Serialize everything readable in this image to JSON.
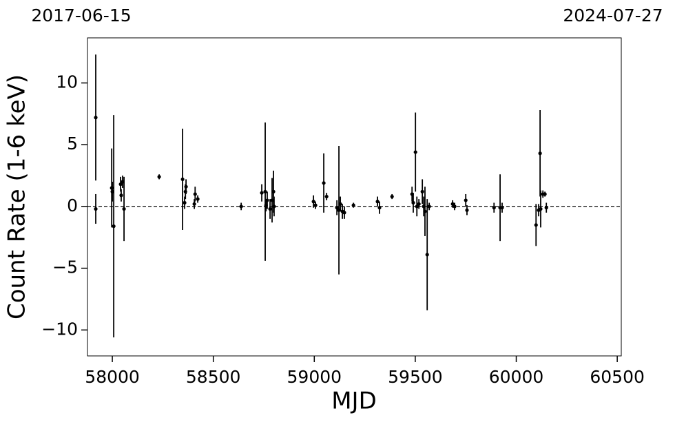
{
  "chart_data": {
    "type": "errorbar",
    "date_start": "2017-06-15",
    "date_end": "2024-07-27",
    "x_label": "MJD",
    "y_label": "Count Rate (1-6 keV)",
    "xlim": [
      57877,
      60520
    ],
    "ylim": [
      -12.1,
      13.65
    ],
    "xticks": [
      58000,
      58500,
      59000,
      59500,
      60000,
      60500
    ],
    "yticks": [
      {
        "value": -10,
        "label": "−10"
      },
      {
        "value": -5,
        "label": "−5"
      },
      0,
      5,
      10
    ],
    "reference_line": 0,
    "color": "#000000",
    "x": [
      57918,
      57918,
      57997,
      58000,
      58007,
      58041,
      58044,
      58051,
      58058,
      58232,
      58348,
      58358,
      58362,
      58365,
      58406,
      58410,
      58423,
      58638,
      58740,
      58757,
      58761,
      58767,
      58781,
      58791,
      58798,
      58801,
      58996,
      59006,
      59047,
      59061,
      59112,
      59122,
      59129,
      59139,
      59149,
      59194,
      59313,
      59323,
      59385,
      59484,
      59490,
      59501,
      59508,
      59518,
      59535,
      59542,
      59548,
      59559,
      59569,
      59685,
      59695,
      59750,
      59756,
      59890,
      59920,
      59930,
      60098,
      60111,
      60118,
      60121,
      60132,
      60142,
      60149
    ],
    "y": [
      7.2,
      -0.2,
      1.5,
      1.2,
      -1.6,
      1.8,
      0.9,
      2.0,
      -0.2,
      2.4,
      2.2,
      0.3,
      1.2,
      1.6,
      0.2,
      1.0,
      0.6,
      0.0,
      1.1,
      1.2,
      0.1,
      0.5,
      -0.2,
      0.5,
      1.2,
      0.0,
      0.4,
      0.1,
      1.9,
      0.8,
      -0.1,
      -0.3,
      0.2,
      -0.4,
      -0.5,
      0.1,
      0.4,
      -0.1,
      0.8,
      1.0,
      0.3,
      4.4,
      0.0,
      0.2,
      1.2,
      0.0,
      -0.4,
      -3.9,
      0.0,
      0.2,
      0.0,
      0.5,
      -0.3,
      -0.1,
      -0.1,
      -0.1,
      -1.5,
      -0.3,
      4.3,
      -0.2,
      1.0,
      1.0,
      -0.1
    ],
    "err": [
      5.1,
      1.2,
      3.2,
      0.8,
      9.0,
      0.6,
      0.5,
      0.5,
      2.6,
      0.2,
      4.1,
      0.5,
      0.6,
      0.6,
      0.4,
      0.6,
      0.3,
      0.3,
      0.7,
      5.6,
      0.5,
      0.7,
      0.8,
      1.8,
      1.7,
      0.8,
      0.5,
      0.3,
      2.4,
      0.3,
      0.6,
      5.2,
      0.6,
      0.6,
      0.5,
      0.2,
      0.4,
      0.5,
      0.2,
      0.6,
      0.8,
      3.2,
      0.8,
      0.4,
      1.0,
      0.8,
      2.0,
      4.5,
      0.3,
      0.3,
      0.3,
      0.5,
      0.4,
      0.4,
      2.7,
      0.4,
      1.7,
      0.5,
      3.5,
      1.5,
      0.3,
      0.2,
      0.4
    ]
  }
}
